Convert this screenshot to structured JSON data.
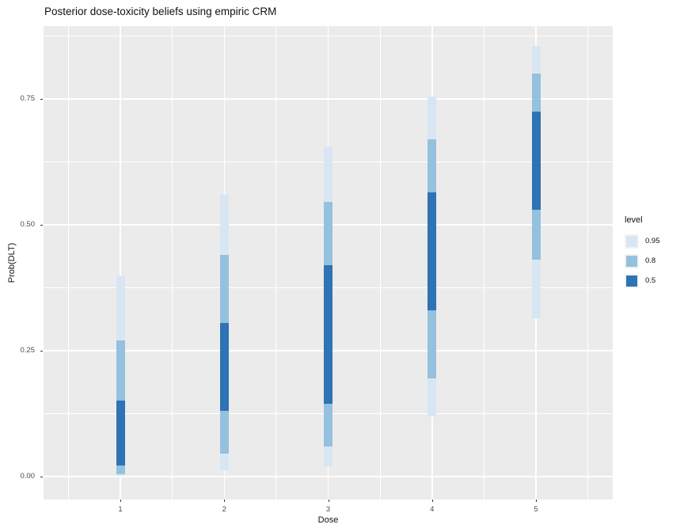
{
  "chart_data": {
    "type": "bar",
    "subtype": "vertical-credible-interval-bars",
    "title": "Posterior dose-toxicity beliefs using empiric CRM",
    "xlabel": "Dose",
    "ylabel": "Prob(DLT)",
    "categories": [
      "1",
      "2",
      "3",
      "4",
      "5"
    ],
    "ylim": [
      -0.046,
      0.895
    ],
    "yticks": [
      {
        "label": "0.00",
        "value": 0.0
      },
      {
        "label": "0.25",
        "value": 0.25
      },
      {
        "label": "0.50",
        "value": 0.5
      },
      {
        "label": "0.75",
        "value": 0.75
      }
    ],
    "minor_ytick_values": [
      0.125,
      0.375,
      0.625,
      0.875
    ],
    "grid": "on",
    "series": [
      {
        "name": "0.95",
        "color": "#D8E6F3",
        "intervals": [
          [
            0.001,
            0.4
          ],
          [
            0.012,
            0.56
          ],
          [
            0.02,
            0.655
          ],
          [
            0.12,
            0.755
          ],
          [
            0.315,
            0.855
          ]
        ]
      },
      {
        "name": "0.8",
        "color": "#94C1DE",
        "intervals": [
          [
            0.005,
            0.27
          ],
          [
            0.045,
            0.44
          ],
          [
            0.06,
            0.545
          ],
          [
            0.195,
            0.67
          ],
          [
            0.43,
            0.8
          ]
        ]
      },
      {
        "name": "0.5",
        "color": "#2E73B3",
        "intervals": [
          [
            0.022,
            0.15
          ],
          [
            0.13,
            0.305
          ],
          [
            0.145,
            0.42
          ],
          [
            0.33,
            0.565
          ],
          [
            0.53,
            0.725
          ]
        ]
      }
    ],
    "legend": {
      "title": "level",
      "position": "right",
      "entries": [
        {
          "label": "0.95",
          "color": "#D8E6F3"
        },
        {
          "label": "0.8",
          "color": "#94C1DE"
        },
        {
          "label": "0.5",
          "color": "#2E73B3"
        }
      ]
    },
    "colors": {
      "panel_background": "#EBEBEB",
      "grid": "#FFFFFF",
      "tick_text": "#4D4D4D",
      "text": "#111111"
    }
  }
}
